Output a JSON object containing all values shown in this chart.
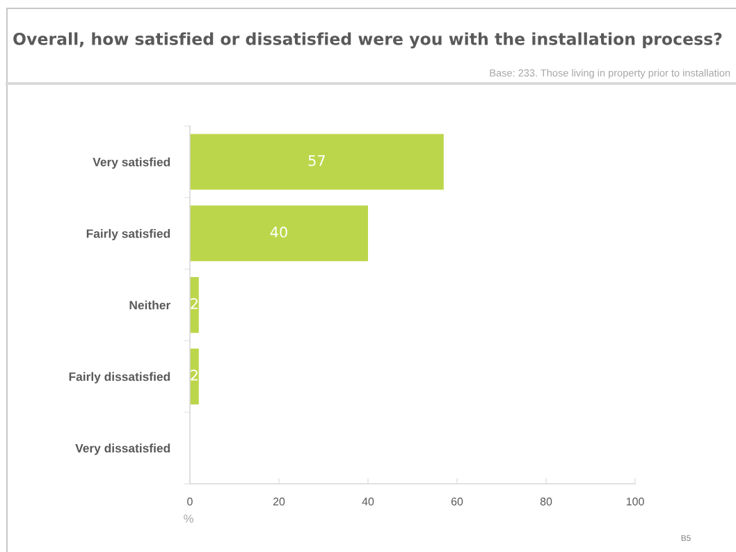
{
  "chart_data": {
    "type": "bar",
    "orientation": "horizontal",
    "title": "Overall, how satisfied or dissatisfied were you with the installation process?",
    "subtitle": "Base: 233. Those living in property prior to installation",
    "xlabel": "%",
    "annotations": [
      "B5"
    ],
    "categories": [
      "Very satisfied",
      "Fairly satisfied",
      "Neither",
      "Fairly dissatisfied",
      "Very dissatisfied"
    ],
    "values": [
      57,
      40,
      2,
      2,
      0
    ],
    "color": "#bcd64b",
    "value_labels": [
      "57",
      "40",
      "2",
      "2",
      null
    ],
    "xlim": [
      0,
      100
    ],
    "xticks": [
      0,
      20,
      40,
      60,
      80,
      100
    ],
    "grid": false
  }
}
